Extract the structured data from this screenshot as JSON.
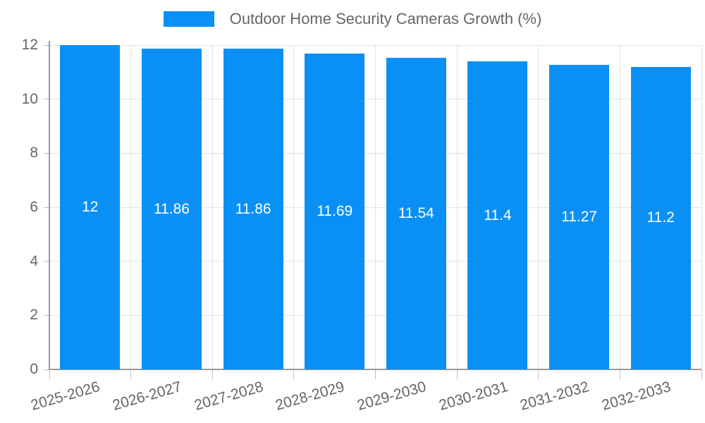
{
  "chart_data": {
    "type": "bar",
    "title": "Outdoor Home Security Cameras Growth (%)",
    "legend_position": "top",
    "categories": [
      "2025-2026",
      "2026-2027",
      "2027-2028",
      "2028-2029",
      "2029-2030",
      "2030-2031",
      "2031-2032",
      "2032-2033"
    ],
    "series": [
      {
        "name": "Outdoor Home Security Cameras Growth (%)",
        "values": [
          12,
          11.86,
          11.86,
          11.69,
          11.54,
          11.4,
          11.27,
          11.2
        ],
        "value_labels": [
          "12",
          "11.86",
          "11.86",
          "11.69",
          "11.54",
          "11.4",
          "11.27",
          "11.2"
        ]
      }
    ],
    "xlabel": "",
    "ylabel": "",
    "ylim": [
      0,
      12
    ],
    "yticks": [
      0,
      2,
      4,
      6,
      8,
      10,
      12
    ],
    "ytick_labels": [
      "0",
      "2",
      "4",
      "6",
      "8",
      "10",
      "12"
    ],
    "grid": true,
    "x_label_rotation_deg": -16,
    "colors": {
      "bar": "#0a90f5",
      "axis_line": "#999999",
      "gridline": "#e3e3e3",
      "tick": "#c0c0c0",
      "tick_label": "#666666",
      "legend_text": "#666666",
      "value_label": "#ffffff",
      "background": "#ffffff"
    }
  }
}
